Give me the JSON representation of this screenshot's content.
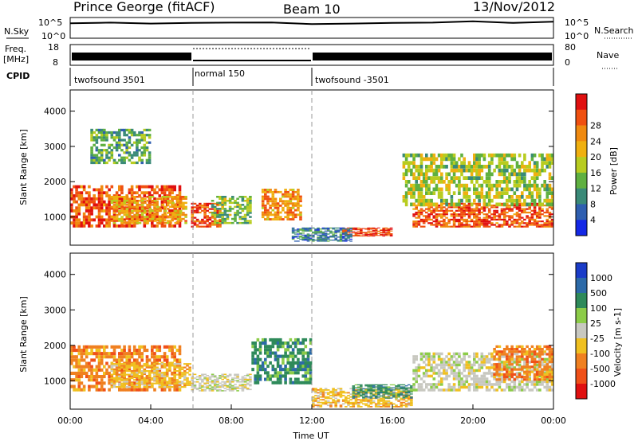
{
  "header": {
    "station": "Prince George (fitACF)",
    "beam": "Beam 10",
    "date": "13/Nov/2012"
  },
  "chart_data": [
    {
      "type": "line",
      "panel": "N.Sky / N.Search",
      "left_label": "N.Sky",
      "right_label": "N.Search",
      "left_ticks": [
        "10^5",
        "10^0"
      ],
      "right_ticks": [
        "10^5",
        "10^0"
      ],
      "xlim": [
        0,
        24
      ],
      "series": [
        {
          "name": "N.Sky",
          "x": [
            0,
            2,
            4,
            6,
            8,
            10,
            12,
            14,
            16,
            18,
            20,
            22,
            24
          ],
          "values": [
            4000,
            6000,
            3500,
            5000,
            6000,
            6500,
            2500,
            3500,
            5000,
            6000,
            12000,
            5000,
            10000
          ]
        }
      ]
    },
    {
      "type": "line",
      "panel": "Freq. / Nave",
      "left_label": "Freq.",
      "left_unit": "[MHz]",
      "right_label": "Nave",
      "left_ticks": [
        "18",
        "8"
      ],
      "right_ticks": [
        "80",
        "0"
      ],
      "ylim": [
        8,
        18
      ],
      "xlim": [
        0,
        24
      ]
    },
    {
      "type": "table",
      "panel": "CPID",
      "label": "CPID",
      "segments": [
        {
          "name": "twofsound 3501",
          "start": 0,
          "end": 6
        },
        {
          "name": "normal 150",
          "start": 6,
          "end": 12
        },
        {
          "name": "twofsound -3501",
          "start": 12,
          "end": 24
        }
      ]
    },
    {
      "type": "heatmap",
      "panel": "Power",
      "ylabel": "Slant Range [km]",
      "ylim": [
        200,
        4600
      ],
      "xlim": [
        0,
        24
      ],
      "y_ticks": [
        "1000",
        "2000",
        "3000",
        "4000"
      ],
      "colorbar_label": "Power [dB]",
      "colorbar_ticks": [
        "4",
        "8",
        "12",
        "16",
        "20",
        "24",
        "28"
      ],
      "colorbar_colors": [
        "#1428e6",
        "#2f5fb0",
        "#3a8a78",
        "#5fb040",
        "#b8cc20",
        "#f0b010",
        "#f08a10",
        "#f05010",
        "#e01010"
      ],
      "echo_regions": [
        {
          "t0": 0,
          "t1": 5.5,
          "r0": 700,
          "r1": 1900,
          "level": 26
        },
        {
          "t0": 2,
          "t1": 5.8,
          "r0": 800,
          "r1": 1600,
          "level": 20
        },
        {
          "t0": 6,
          "t1": 7.5,
          "r0": 700,
          "r1": 1400,
          "level": 26
        },
        {
          "t0": 7,
          "t1": 9,
          "r0": 800,
          "r1": 1600,
          "level": 12
        },
        {
          "t0": 9.5,
          "t1": 11.5,
          "r0": 900,
          "r1": 1800,
          "level": 22
        },
        {
          "t0": 13.5,
          "t1": 16,
          "r0": 450,
          "r1": 700,
          "level": 28
        },
        {
          "t0": 11,
          "t1": 14,
          "r0": 300,
          "r1": 700,
          "level": 6
        },
        {
          "t0": 17,
          "t1": 24,
          "r0": 700,
          "r1": 1400,
          "level": 26
        },
        {
          "t0": 16.5,
          "t1": 24,
          "r0": 1300,
          "r1": 2800,
          "level": 14
        },
        {
          "t0": 1,
          "t1": 4,
          "r0": 2500,
          "r1": 3500,
          "level": 10
        }
      ]
    },
    {
      "type": "heatmap",
      "panel": "Velocity",
      "ylabel": "Slant Range [km]",
      "xlabel": "Time UT",
      "ylim": [
        200,
        4600
      ],
      "xlim": [
        0,
        24
      ],
      "y_ticks": [
        "1000",
        "2000",
        "3000",
        "4000"
      ],
      "x_ticks": [
        "00:00",
        "04:00",
        "08:00",
        "12:00",
        "16:00",
        "20:00",
        "00:00"
      ],
      "colorbar_label": "Velocity [m s-1]",
      "colorbar_ticks": [
        "1000",
        "500",
        "100",
        "25",
        "-25",
        "-100",
        "-500",
        "-1000"
      ],
      "colorbar_colors": [
        "#1a3cc8",
        "#2c6aa8",
        "#2e8a5a",
        "#8ccc48",
        "#c8c8c0",
        "#f0c020",
        "#f08020",
        "#f05018",
        "#e01010"
      ],
      "echo_regions": [
        {
          "t0": 0,
          "t1": 5.5,
          "r0": 700,
          "r1": 2000,
          "velocity": -500
        },
        {
          "t0": 2,
          "t1": 6,
          "r0": 800,
          "r1": 1500,
          "velocity": -100
        },
        {
          "t0": 6,
          "t1": 9,
          "r0": 700,
          "r1": 1200,
          "velocity": 0
        },
        {
          "t0": 9,
          "t1": 12,
          "r0": 900,
          "r1": 2200,
          "velocity": 100
        },
        {
          "t0": 12,
          "t1": 17,
          "r0": 250,
          "r1": 800,
          "velocity": -100
        },
        {
          "t0": 14,
          "t1": 17,
          "r0": 500,
          "r1": 900,
          "velocity": 100
        },
        {
          "t0": 17,
          "t1": 24,
          "r0": 700,
          "r1": 1800,
          "velocity": 0
        },
        {
          "t0": 21,
          "t1": 24,
          "r0": 1000,
          "r1": 2000,
          "velocity": -500
        }
      ]
    }
  ]
}
